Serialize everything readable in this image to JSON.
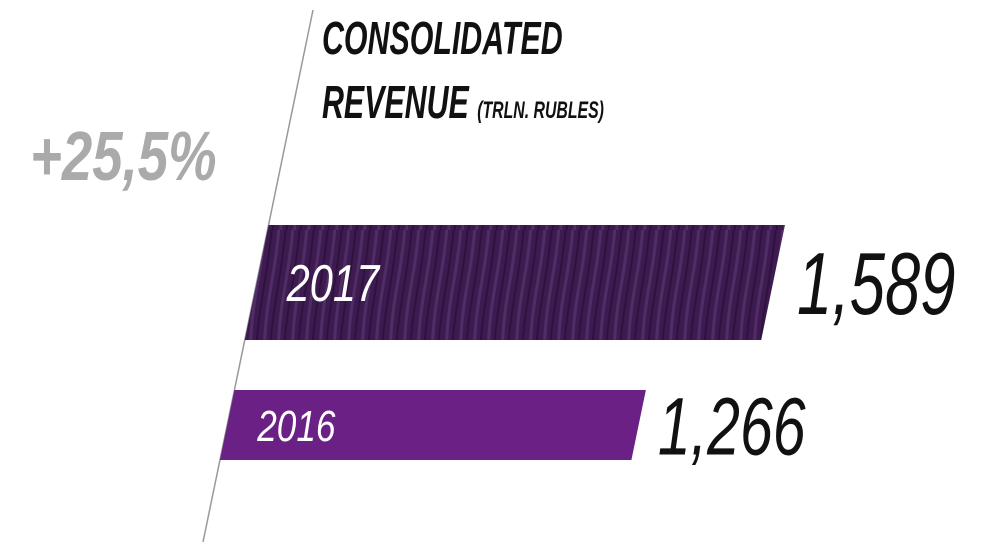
{
  "chart_data": {
    "type": "bar",
    "orientation": "horizontal",
    "title": "CONSOLIDATED REVENUE",
    "unit": "(TRLN. RUBLES)",
    "annotation": "+25,5%",
    "categories": [
      "2017",
      "2016"
    ],
    "values": [
      1.589,
      1.266
    ],
    "value_labels": [
      "1,589",
      "1,266"
    ],
    "colors": [
      "#3d1a50",
      "#6a2084"
    ]
  }
}
